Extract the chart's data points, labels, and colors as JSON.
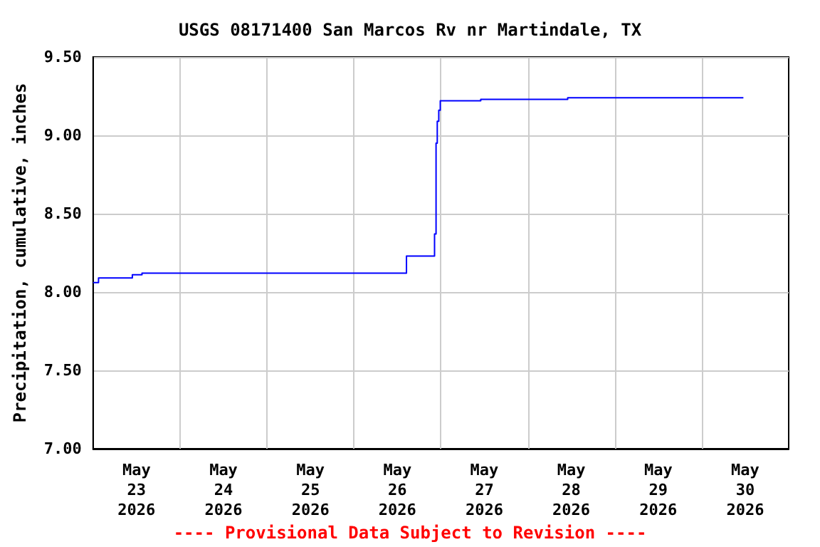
{
  "chart_data": {
    "type": "step",
    "title": "USGS 08171400 San Marcos Rv nr Martindale, TX",
    "ylabel": "Precipitation, cumulative, inches",
    "annotations": [
      "---- Provisional Data Subject to Revision ----"
    ],
    "x": [
      "2026-05-23T00:00",
      "2026-05-23T01:30",
      "2026-05-23T10:50",
      "2026-05-23T13:30",
      "2026-05-26T14:30",
      "2026-05-26T22:15",
      "2026-05-26T22:40",
      "2026-05-26T23:00",
      "2026-05-26T23:25",
      "2026-05-26T23:50",
      "2026-05-27T11:00",
      "2026-05-28T11:00",
      "2026-05-30T11:30"
    ],
    "series": [
      {
        "color": "#0000ff",
        "values": [
          8.06,
          8.09,
          8.11,
          8.12,
          8.23,
          8.37,
          8.95,
          9.09,
          9.16,
          9.22,
          9.23,
          9.24,
          9.24
        ]
      }
    ],
    "xlim": [
      "2026-05-23T00:00",
      "2026-05-31T00:00"
    ],
    "xticks": [
      {
        "value": "2026-05-24T00:00",
        "label": null
      },
      {
        "value": "2026-05-25T00:00",
        "label": null
      },
      {
        "value": "2026-05-26T00:00",
        "label": null
      },
      {
        "value": "2026-05-27T00:00",
        "label": null
      },
      {
        "value": "2026-05-28T00:00",
        "label": null
      },
      {
        "value": "2026-05-29T00:00",
        "label": null
      },
      {
        "value": "2026-05-30T00:00",
        "label": null
      },
      {
        "value": "2026-05-23T12:00",
        "label": "May\n23\n2026"
      },
      {
        "value": "2026-05-24T12:00",
        "label": "May\n24\n2026"
      },
      {
        "value": "2026-05-25T12:00",
        "label": "May\n25\n2026"
      },
      {
        "value": "2026-05-26T12:00",
        "label": "May\n26\n2026"
      },
      {
        "value": "2026-05-27T12:00",
        "label": "May\n27\n2026"
      },
      {
        "value": "2026-05-28T12:00",
        "label": "May\n28\n2026"
      },
      {
        "value": "2026-05-29T12:00",
        "label": "May\n29\n2026"
      },
      {
        "value": "2026-05-30T12:00",
        "label": "May\n30\n2026"
      }
    ],
    "ylim": [
      7.0,
      9.5
    ],
    "yticks": [
      {
        "value": 7.0,
        "label": "7.00"
      },
      {
        "value": 7.5,
        "label": "7.50"
      },
      {
        "value": 8.0,
        "label": "8.00"
      },
      {
        "value": 8.5,
        "label": "8.50"
      },
      {
        "value": 9.0,
        "label": "9.00"
      },
      {
        "value": 9.5,
        "label": "9.50"
      }
    ],
    "grid": true,
    "marker": "none",
    "line_style": "solid"
  }
}
